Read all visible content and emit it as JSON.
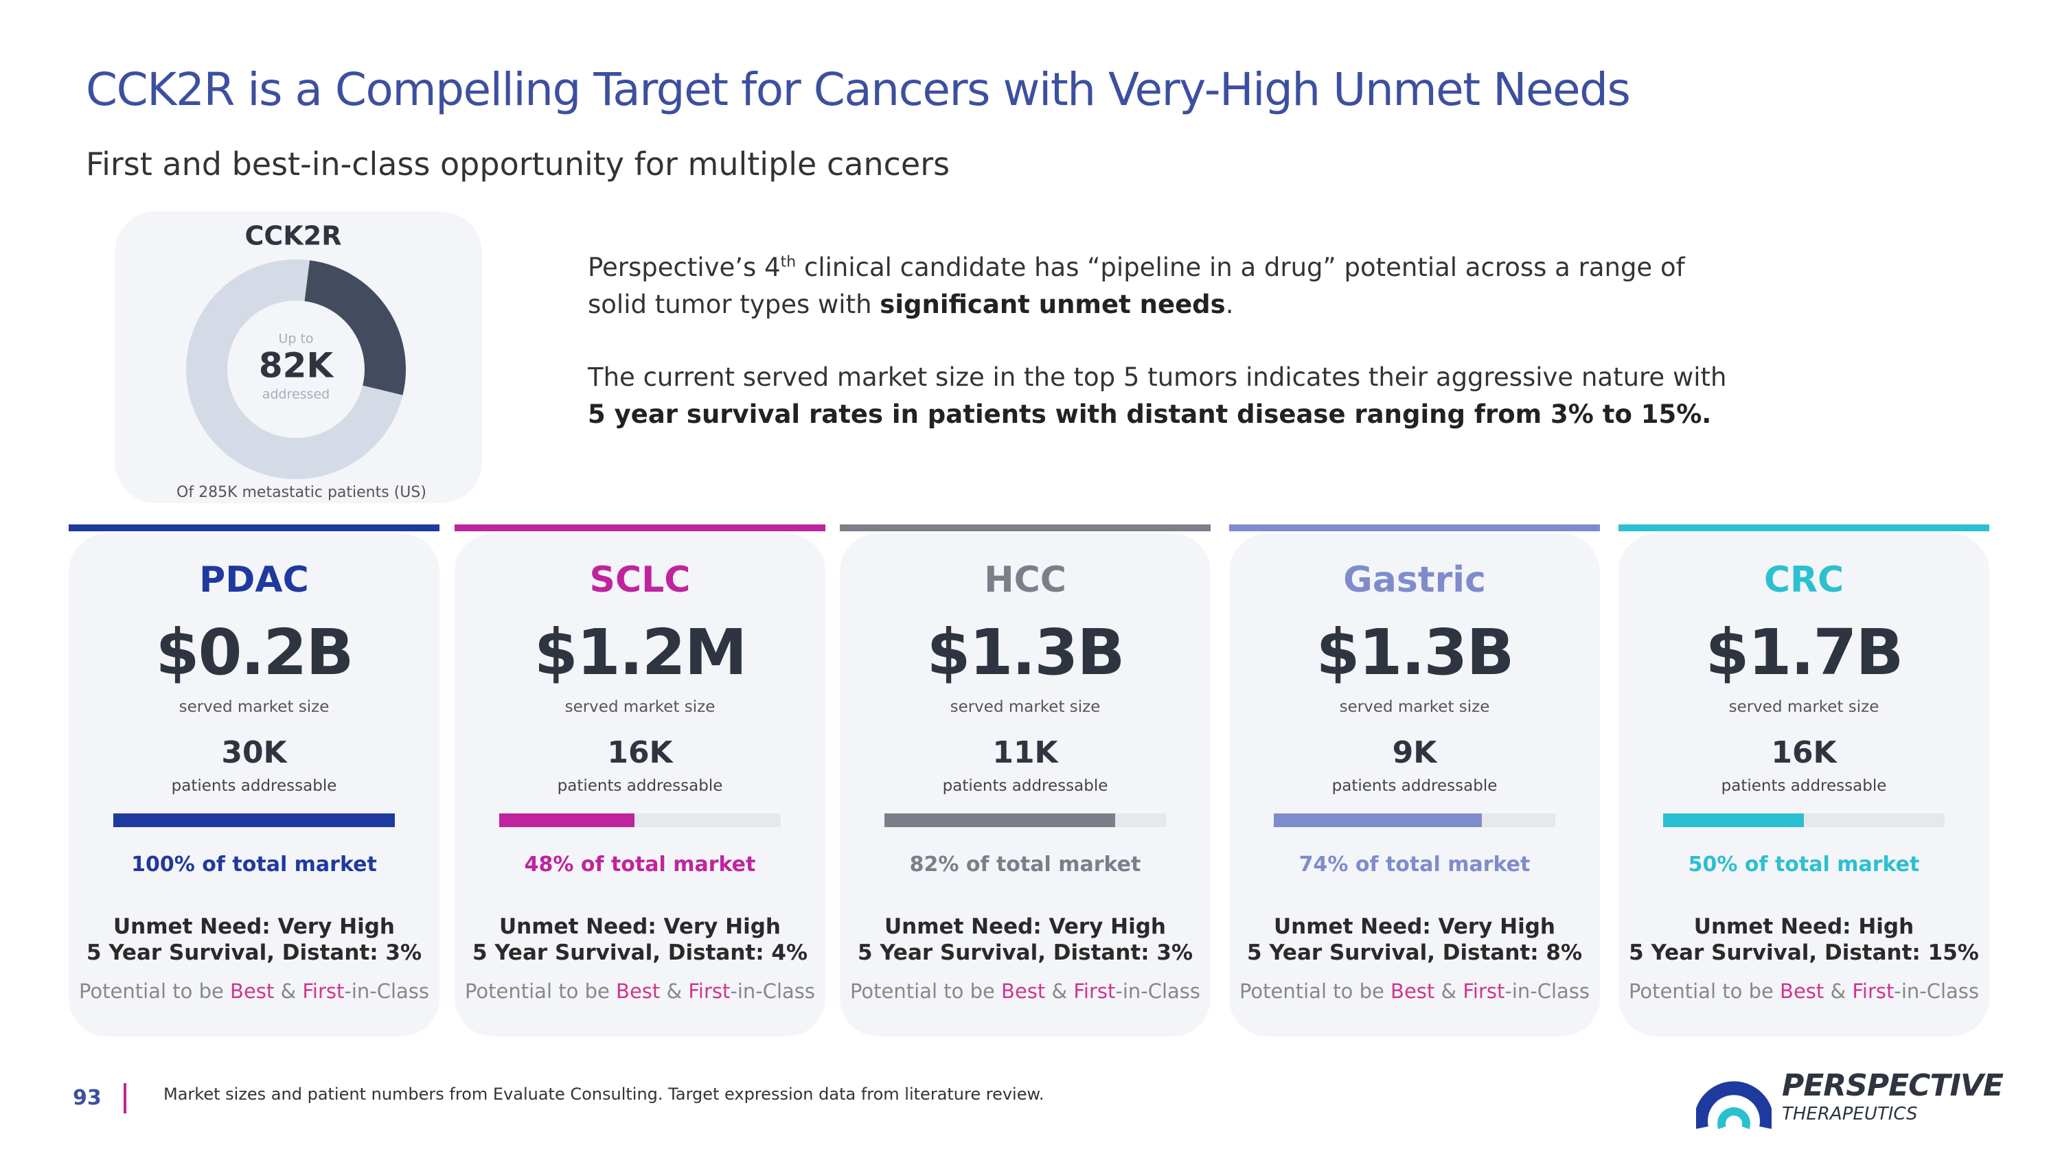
{
  "header": {
    "title": "CCK2R is a Compelling Target for Cancers with Very-High Unmet Needs",
    "subtitle": "First and best-in-class opportunity for multiple cancers"
  },
  "donut": {
    "title": "CCK2R",
    "prefix": "Up to",
    "addressed": 82000,
    "addressed_label": "82K",
    "suffix": "addressed",
    "total": 285000,
    "caption": "Of 285K metastatic patients (US)"
  },
  "intro": {
    "p1_line1": [
      "Perspective’s 4",
      "th",
      " clinical candidate has “pipeline in a drug” potential across a range of"
    ],
    "p1_line2": [
      "solid tumor types with ",
      "significant unmet needs",
      "."
    ],
    "p2_line1": "The current served market size in the top 5 tumors indicates their aggressive nature with",
    "p2_line2": "5 year survival rates in patients with distant disease ranging from 3% to 15%."
  },
  "potential": [
    "Potential to be ",
    "Best",
    " & ",
    "First",
    "-in-Class"
  ],
  "cards": [
    {
      "name": "PDAC",
      "color": "#1f3a9e",
      "market_size": "$0.2B",
      "market_label": "served market size",
      "patients": "30K",
      "patients_label": "patients addressable",
      "share": 100,
      "share_label": "100% of total market",
      "unmet": "Unmet Need: Very High",
      "survival": "5 Year Survival, Distant: 3%"
    },
    {
      "name": "SCLC",
      "color": "#c0249c",
      "market_size": "$1.2M",
      "market_label": "served market size",
      "patients": "16K",
      "patients_label": "patients addressable",
      "share": 48,
      "share_label": "48% of total market",
      "unmet": "Unmet Need: Very High",
      "survival": "5 Year Survival, Distant: 4%"
    },
    {
      "name": "HCC",
      "color": "#7a7f8a",
      "market_size": "$1.3B",
      "market_label": "served market size",
      "patients": "11K",
      "patients_label": "patients addressable",
      "share": 82,
      "share_label": "82% of total market",
      "unmet": "Unmet Need: Very High",
      "survival": "5 Year Survival, Distant: 3%"
    },
    {
      "name": "Gastric",
      "color": "#7f8ccc",
      "market_size": "$1.3B",
      "market_label": "served market size",
      "patients": "9K",
      "patients_label": "patients addressable",
      "share": 74,
      "share_label": "74% of total market",
      "unmet": "Unmet Need: Very High",
      "survival": "5 Year Survival, Distant: 8%"
    },
    {
      "name": "CRC",
      "color": "#2bc0d0",
      "market_size": "$1.7B",
      "market_label": "served market size",
      "patients": "16K",
      "patients_label": "patients addressable",
      "share": 50,
      "share_label": "50% of total market",
      "unmet": "Unmet Need: High",
      "survival": "5 Year Survival, Distant: 15%"
    }
  ],
  "footer": {
    "page": "93",
    "note": "Market sizes and patient numbers from Evaluate Consulting. Target expression data from literature review.",
    "logo_name": "PERSPECTIVE",
    "logo_sub": "THERAPEUTICS"
  }
}
